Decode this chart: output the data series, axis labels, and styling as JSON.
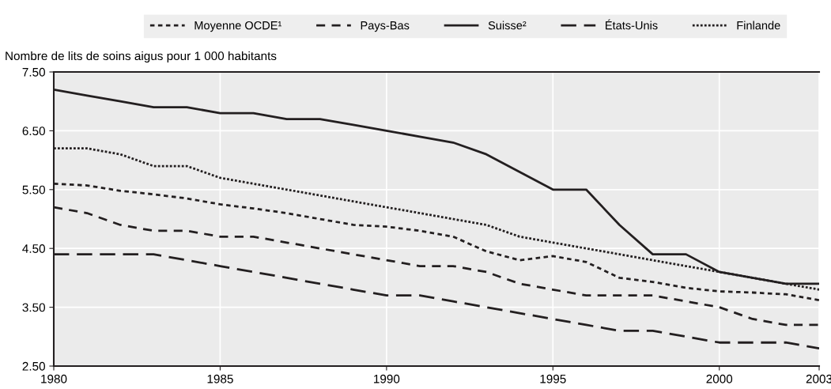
{
  "chart_data": {
    "type": "line",
    "ylabel": "Nombre de lits de soins aigus pour 1 000 habitants",
    "x": [
      1980,
      1981,
      1982,
      1983,
      1984,
      1985,
      1986,
      1987,
      1988,
      1989,
      1990,
      1991,
      1992,
      1993,
      1994,
      1995,
      1996,
      1997,
      1998,
      1999,
      2000,
      2001,
      2002,
      2003
    ],
    "series": [
      {
        "name": "Moyenne OCDE¹",
        "color": "#231f20",
        "line_style": "short dashed",
        "values": [
          5.6,
          5.57,
          5.48,
          5.42,
          5.35,
          5.25,
          5.18,
          5.1,
          5.0,
          4.9,
          4.87,
          4.8,
          4.7,
          4.45,
          4.3,
          4.37,
          4.27,
          4.0,
          3.93,
          3.83,
          3.77,
          3.75,
          3.72,
          3.62
        ]
      },
      {
        "name": "Pays-Bas",
        "color": "#231f20",
        "line_style": "dashed",
        "values": [
          5.2,
          5.1,
          4.9,
          4.8,
          4.8,
          4.7,
          4.7,
          4.6,
          4.5,
          4.4,
          4.3,
          4.2,
          4.2,
          4.1,
          3.9,
          3.8,
          3.7,
          3.7,
          3.7,
          3.6,
          3.5,
          3.3,
          3.2,
          3.2
        ]
      },
      {
        "name": "Suisse²",
        "color": "#231f20",
        "line_style": "solid",
        "values": [
          7.2,
          7.1,
          7.0,
          6.9,
          6.9,
          6.8,
          6.8,
          6.7,
          6.7,
          6.6,
          6.5,
          6.4,
          6.3,
          6.1,
          5.8,
          5.5,
          5.5,
          4.9,
          4.4,
          4.4,
          4.1,
          4.0,
          3.9,
          3.9
        ]
      },
      {
        "name": "États-Unis",
        "color": "#231f20",
        "line_style": "long dashed",
        "values": [
          4.4,
          4.4,
          4.4,
          4.4,
          4.3,
          4.2,
          4.1,
          4.0,
          3.9,
          3.8,
          3.7,
          3.7,
          3.6,
          3.5,
          3.4,
          3.3,
          3.2,
          3.1,
          3.1,
          3.0,
          2.9,
          2.9,
          2.9,
          2.8
        ]
      },
      {
        "name": "Finlande",
        "color": "#231f20",
        "line_style": "dotted",
        "values": [
          6.2,
          6.2,
          6.1,
          5.9,
          5.9,
          5.7,
          5.6,
          5.5,
          5.4,
          5.3,
          5.2,
          5.1,
          5.0,
          4.9,
          4.7,
          4.6,
          4.5,
          4.4,
          4.3,
          4.2,
          4.1,
          4.0,
          3.9,
          3.8
        ]
      }
    ],
    "xlim": [
      1980,
      2003
    ],
    "xticks": [
      1980,
      1985,
      1990,
      1995,
      2000,
      2003
    ],
    "ylim": [
      2.5,
      7.5
    ],
    "yticks": [
      {
        "value": 2.5,
        "label": "2.50"
      },
      {
        "value": 3.5,
        "label": "3.50"
      },
      {
        "value": 4.5,
        "label": "4.50"
      },
      {
        "value": 5.5,
        "label": "5.50"
      },
      {
        "value": 6.5,
        "label": "6.50"
      },
      {
        "value": 7.5,
        "label": "7.50"
      }
    ],
    "grid": true,
    "legend": "top",
    "marker": "none"
  }
}
